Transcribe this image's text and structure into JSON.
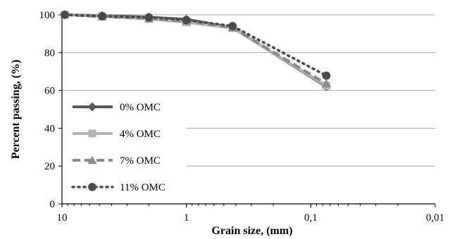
{
  "chart_data": {
    "type": "line",
    "title": "",
    "xlabel": "Grain size, (mm)",
    "ylabel": "Percent passing, (%)",
    "x_scale": "log",
    "x_reversed": true,
    "xlim": [
      10,
      0.01
    ],
    "ylim": [
      0,
      100
    ],
    "x_ticks": [
      10,
      1,
      0.1,
      0.01
    ],
    "x_tick_labels": [
      "10",
      "1",
      "0,1",
      "0,01"
    ],
    "y_ticks": [
      0,
      20,
      40,
      60,
      80,
      100
    ],
    "y_tick_labels": [
      "0",
      "20",
      "40",
      "60",
      "80",
      "100"
    ],
    "grid": "horizontal",
    "legend_position": "left",
    "x": [
      9.5,
      4.75,
      2.0,
      1.0,
      0.425,
      0.075
    ],
    "series": [
      {
        "name": "0% OMC",
        "color": "#5a5a5a",
        "marker": "diamond",
        "line": "solid",
        "values": [
          100,
          99.6,
          98.7,
          97.6,
          93.2,
          62.0
        ]
      },
      {
        "name": "4% OMC",
        "color": "#b4b4b4",
        "marker": "square",
        "line": "solid",
        "values": [
          100,
          99.3,
          97.8,
          96.0,
          93.0,
          62.5
        ]
      },
      {
        "name": "7% OMC",
        "color": "#8a8a8a",
        "marker": "triangle",
        "line": "dashed",
        "values": [
          100,
          99.0,
          98.0,
          96.6,
          93.2,
          63.5
        ]
      },
      {
        "name": "11% OMC",
        "color": "#4a4a4a",
        "marker": "circle",
        "line": "dotted",
        "values": [
          100,
          99.2,
          98.6,
          97.2,
          94.0,
          67.8
        ]
      }
    ]
  }
}
